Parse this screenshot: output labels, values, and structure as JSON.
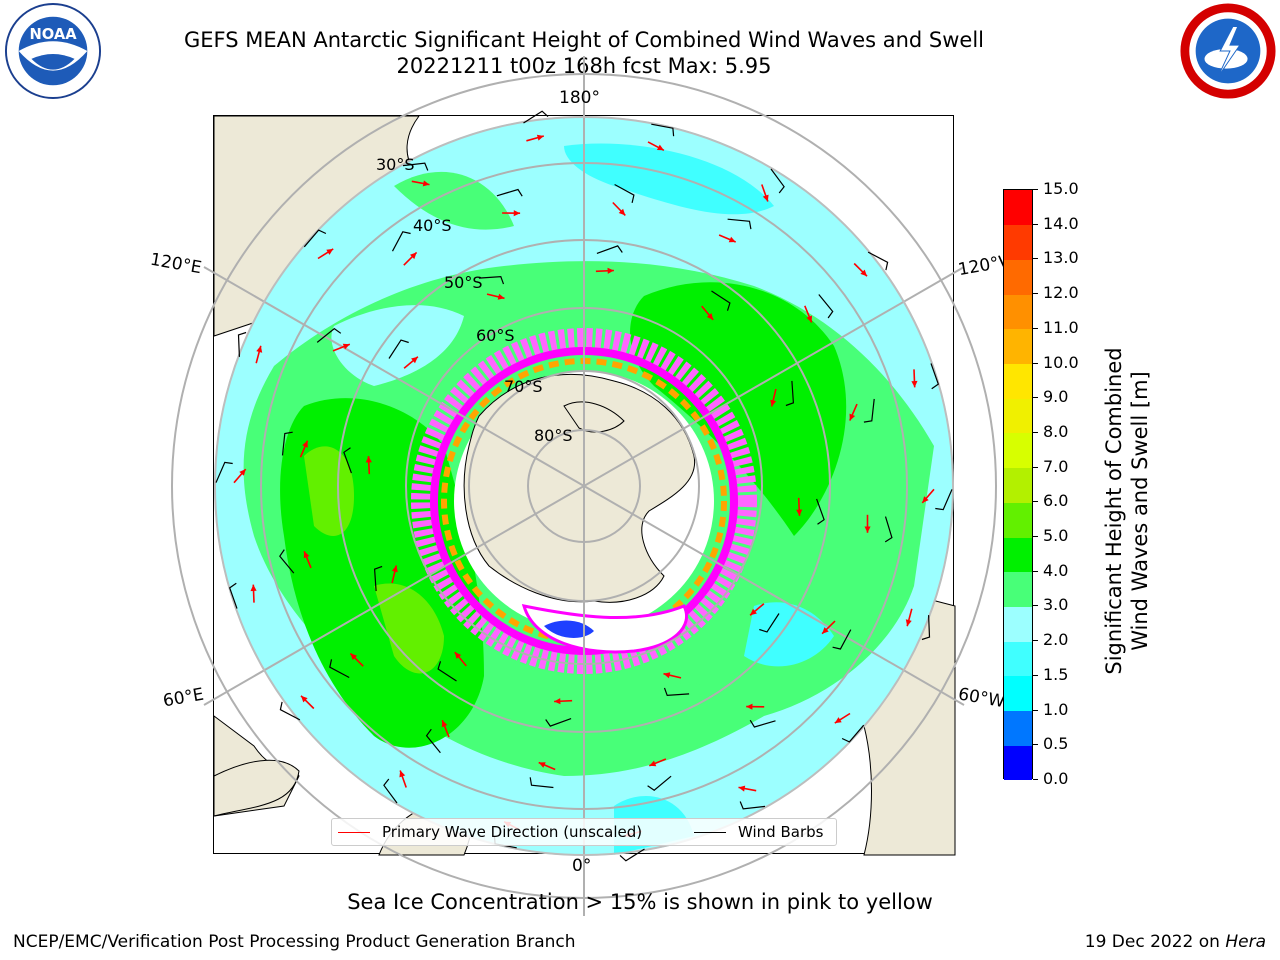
{
  "title": {
    "line1": "GEFS MEAN Antarctic Significant Height of Combined Wind Waves and Swell",
    "line2": "20221211 t00z 168h fcst   Max: 5.95"
  },
  "map": {
    "projection": "south-polar-stereographic",
    "lon_labels": {
      "top": "180°",
      "bottom": "0°",
      "left_upper": "120°E",
      "left_lower": "60°E",
      "right_upper": "120°W",
      "right_lower": "60°W"
    },
    "lat_labels": [
      "30°S",
      "40°S",
      "50°S",
      "60°S",
      "70°S",
      "80°S"
    ],
    "colors": {
      "land": "#ede9d7",
      "ice_edge": "#ff00ff",
      "ice_mid": "#ffa500",
      "wave_arrow": "#ff0000",
      "wind_barb": "#000000",
      "grid": "#b0b0b0"
    }
  },
  "legend": {
    "primary_wave": "Primary Wave Direction (unscaled)",
    "wind_barbs": "Wind Barbs"
  },
  "colorbar": {
    "label_line1": "Significant Height of Combined",
    "label_line2": "Wind Waves and Swell [m]",
    "ticks": [
      "0.0",
      "0.5",
      "1.0",
      "1.5",
      "2.0",
      "3.0",
      "4.0",
      "5.0",
      "6.0",
      "7.0",
      "8.0",
      "9.0",
      "10.0",
      "11.0",
      "12.0",
      "13.0",
      "14.0",
      "15.0"
    ],
    "colors": [
      "#0000ff",
      "#0077ff",
      "#00ffff",
      "#40ffff",
      "#9cffff",
      "#48ff78",
      "#00f000",
      "#62f000",
      "#b3f000",
      "#d7ff00",
      "#f0f000",
      "#ffe600",
      "#ffb400",
      "#ff9000",
      "#ff6a00",
      "#ff3a00",
      "#ff0000"
    ]
  },
  "note": "Sea Ice Concentration > 15% is shown in pink to yellow",
  "footer": {
    "left": "NCEP/EMC/Verification Post Processing Product Generation Branch",
    "right_date": "19 Dec 2022 on",
    "right_host": "Hera"
  }
}
